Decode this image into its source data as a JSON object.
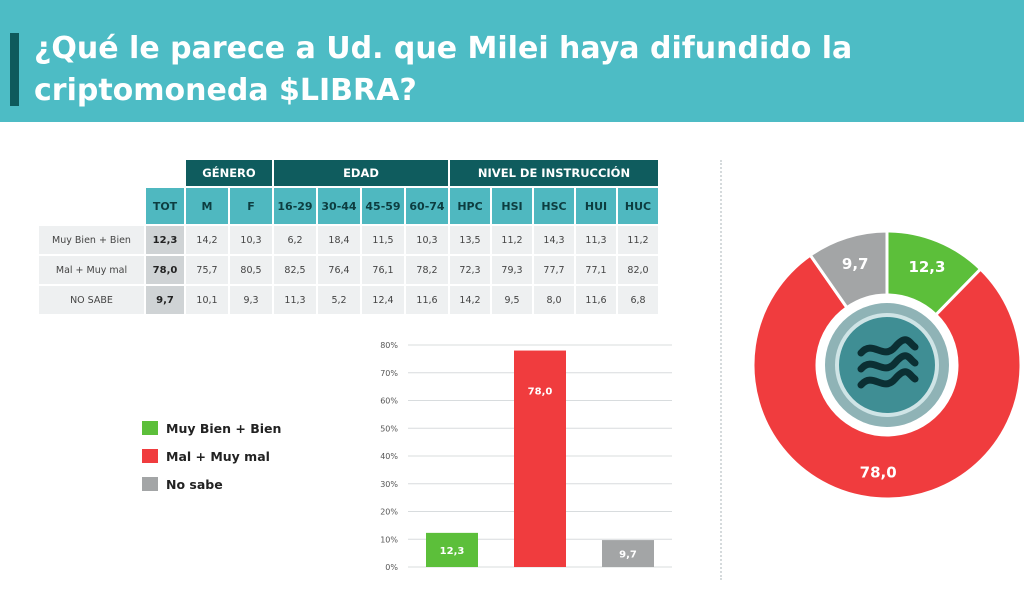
{
  "title": "¿Qué le parece a Ud. que Milei haya difundido la criptomoneda $LIBRA?",
  "colors": {
    "header_bg": "#4dbcc5",
    "dark_teal": "#0f5c5e",
    "green": "#5cbf3a",
    "red": "#f03c3e",
    "gray": "#a3a5a6"
  },
  "table": {
    "groups": [
      "GÉNERO",
      "EDAD",
      "NIVEL DE INSTRUCCIÓN"
    ],
    "tot_header": "TOT",
    "sub_headers": [
      "M",
      "F",
      "16-29",
      "30-44",
      "45-59",
      "60-74",
      "HPC",
      "HSI",
      "HSC",
      "HUI",
      "HUC"
    ],
    "rows": [
      {
        "label": "Muy Bien + Bien",
        "tot": "12,3",
        "values": [
          "14,2",
          "10,3",
          "6,2",
          "18,4",
          "11,5",
          "10,3",
          "13,5",
          "11,2",
          "14,3",
          "11,3",
          "11,2"
        ]
      },
      {
        "label": "Mal + Muy mal",
        "tot": "78,0",
        "values": [
          "75,7",
          "80,5",
          "82,5",
          "76,4",
          "76,1",
          "78,2",
          "72,3",
          "79,3",
          "77,7",
          "77,1",
          "82,0"
        ]
      },
      {
        "label": "NO SABE",
        "tot": "9,7",
        "values": [
          "10,1",
          "9,3",
          "11,3",
          "5,2",
          "12,4",
          "11,6",
          "14,2",
          "9,5",
          "8,0",
          "11,6",
          "6,8"
        ]
      }
    ]
  },
  "legend": [
    {
      "label": "Muy Bien + Bien",
      "color": "#5cbf3a"
    },
    {
      "label": "Mal + Muy mal",
      "color": "#f03c3e"
    },
    {
      "label": "No sabe",
      "color": "#a3a5a6"
    }
  ],
  "chart_data": [
    {
      "type": "bar",
      "categories": [
        "Muy Bien + Bien",
        "Mal + Muy mal",
        "No sabe"
      ],
      "values": [
        12.3,
        78.0,
        9.7
      ],
      "value_labels": [
        "12,3",
        "78,0",
        "9,7"
      ],
      "colors": [
        "#5cbf3a",
        "#f03c3e",
        "#a3a5a6"
      ],
      "ylim": [
        0,
        80
      ],
      "yticks": [
        "0%",
        "10%",
        "20%",
        "30%",
        "40%",
        "50%",
        "60%",
        "70%",
        "80%"
      ],
      "grid": true
    },
    {
      "type": "pie",
      "donut": true,
      "categories": [
        "Muy Bien + Bien",
        "Mal + Muy mal",
        "No sabe"
      ],
      "values": [
        12.3,
        78.0,
        9.7
      ],
      "value_labels": [
        "12,3",
        "78,0",
        "9,7"
      ],
      "colors": [
        "#5cbf3a",
        "#f03c3e",
        "#a3a5a6"
      ]
    }
  ]
}
